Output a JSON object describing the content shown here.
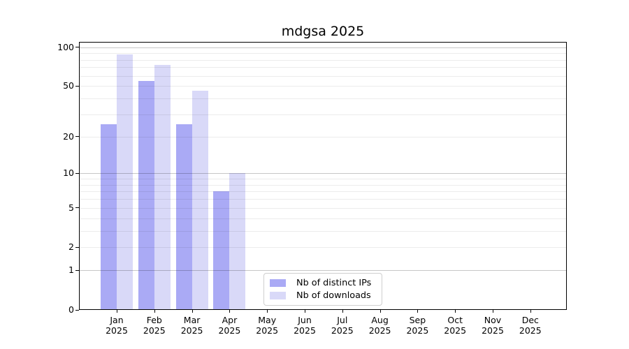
{
  "chart_data": {
    "type": "bar",
    "title": "mdgsa 2025",
    "categories": [
      "Jan",
      "Feb",
      "Mar",
      "Apr",
      "May",
      "Jun",
      "Jul",
      "Aug",
      "Sep",
      "Oct",
      "Nov",
      "Dec"
    ],
    "category_year": "2025",
    "series": [
      {
        "name": "Nb of distinct IPs",
        "color": "#aaaaf5",
        "values": [
          25,
          55,
          25,
          7,
          0,
          0,
          0,
          0,
          0,
          0,
          0,
          0
        ]
      },
      {
        "name": "Nb of downloads",
        "color": "#d9d9f8",
        "values": [
          88,
          73,
          46,
          10,
          0,
          0,
          0,
          0,
          0,
          0,
          0,
          0
        ]
      }
    ],
    "y_axis": {
      "scale": "log1p",
      "ticks": [
        0,
        1,
        2,
        5,
        10,
        20,
        50,
        100
      ],
      "range": [
        0,
        100
      ]
    },
    "grid": true,
    "legend_position": "bottom-center"
  }
}
